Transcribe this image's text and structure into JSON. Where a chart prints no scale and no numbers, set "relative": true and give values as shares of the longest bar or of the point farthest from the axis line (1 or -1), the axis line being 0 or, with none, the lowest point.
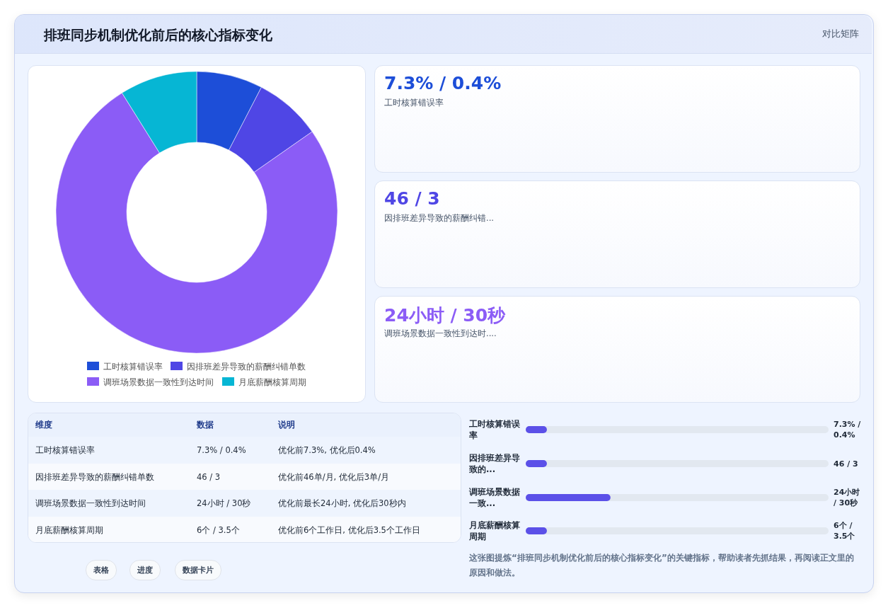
{
  "chart_data": [
    {
      "type": "other",
      "title": "排班同步机制优化前后的核心指标变化",
      "subtitle": "对比矩阵"
    },
    {
      "type": "donut",
      "categories": [
        "工时核算错误率",
        "因排班差异导致的薪酬纠错单数",
        "调班场景数据一致性到达时间",
        "月底薪酬核算周期"
      ],
      "values": [
        7.6,
        7.7,
        75.8,
        8.9
      ],
      "colors": [
        "#1d4ed8",
        "#4f46e5",
        "#8b5cf6",
        "#06b6d4"
      ],
      "legend": "bottom"
    },
    {
      "type": "other",
      "annotations": [
        "7.3% / 0.4%",
        "工时核算错误率",
        "46 / 3",
        "因排班差异导致的薪酬纠错...",
        "24小时 / 30秒",
        "调班场景数据一致性到达时...."
      ]
    },
    {
      "type": "other",
      "annotations": [
        "维度",
        "数据",
        "说明",
        "工时核算错误率",
        "7.3% / 0.4%",
        "优化前7.3%, 优化后0.4%",
        "因排班差异导致的薪酬纠错单数",
        "46 / 3",
        "优化前46单/月, 优化后3单/月",
        "调班场景数据一致性到达时间",
        "24小时 / 30秒",
        "优化前最长24小时, 优化后30秒内",
        "月底薪酬核算周期",
        "6个 / 3.5个",
        "优化前6个工作日, 优化后3.5个工作日",
        "表格",
        "进度",
        "数据卡片"
      ]
    },
    {
      "type": "bar",
      "orientation": "horizontal",
      "relative": true,
      "categories": [
        "工时核算错误率",
        "因排班差异导致的...",
        "调班场景数据一致...",
        "月底薪酬核算周期"
      ],
      "values": [
        0.25,
        0.25,
        1,
        0.25
      ],
      "color": "#5b50e8",
      "annotations": [
        "7.3% / 0.4%",
        "46 / 3",
        "24小时 / 30秒",
        "6个 / 3.5个",
        "这张图提炼“排班同步机制优化前后的核心指标变化”的关键指标，帮助读者先抓结果，再阅读正文里的原因和做法。"
      ]
    }
  ]
}
